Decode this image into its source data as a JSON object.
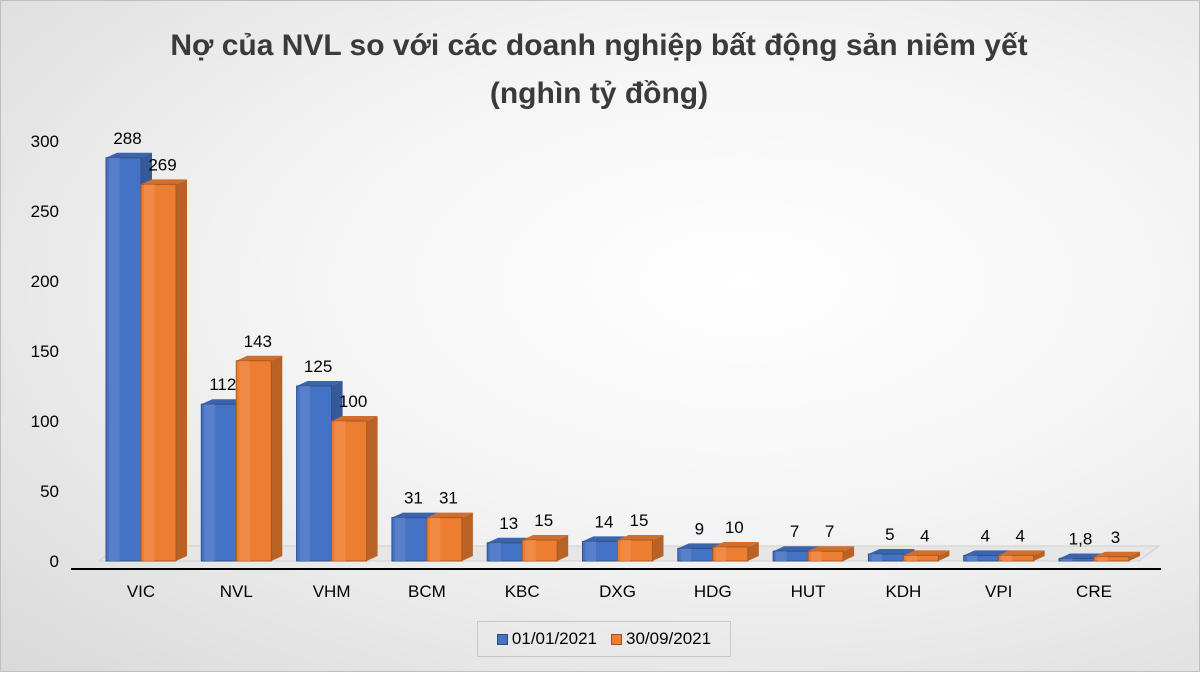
{
  "chart_data": {
    "type": "bar",
    "title": "Nợ của NVL so với các doanh nghiệp bất động sản niêm yết",
    "subtitle": "(nghìn tỷ đồng)",
    "xlabel": "",
    "ylabel": "",
    "ylim": [
      0,
      300
    ],
    "yticks": [
      "0",
      "50",
      "100",
      "150",
      "200",
      "250",
      "300"
    ],
    "grid": false,
    "legend_position": "bottom",
    "categories": [
      "VIC",
      "NVL",
      "VHM",
      "BCM",
      "KBC",
      "DXG",
      "HDG",
      "HUT",
      "KDH",
      "VPI",
      "CRE"
    ],
    "series": [
      {
        "name": "01/01/2021",
        "color": "#4472C4",
        "values": [
          288,
          112,
          125,
          31,
          13,
          14,
          9,
          7,
          5,
          4,
          1.8
        ],
        "labels": [
          "288",
          "112",
          "125",
          "31",
          "13",
          "14",
          "9",
          "7",
          "5",
          "4",
          "1,8"
        ]
      },
      {
        "name": "30/09/2021",
        "color": "#ED7D31",
        "values": [
          269,
          143,
          100,
          31,
          15,
          15,
          10,
          7,
          4,
          4,
          3
        ],
        "labels": [
          "269",
          "143",
          "100",
          "31",
          "15",
          "15",
          "10",
          "7",
          "4",
          "4",
          "3"
        ]
      }
    ]
  }
}
